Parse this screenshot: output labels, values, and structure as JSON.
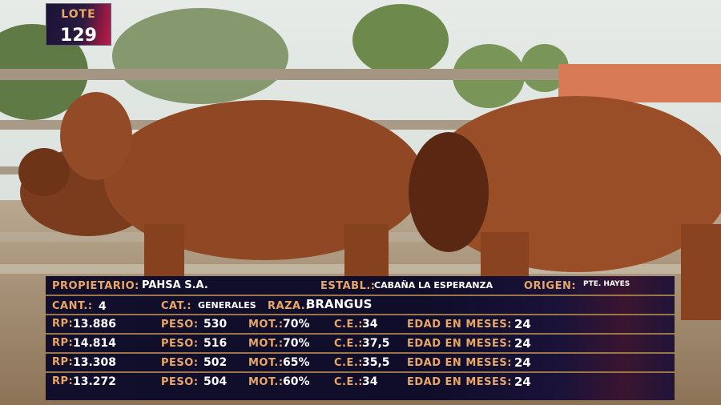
{
  "lot": {
    "label": "LOTE",
    "number": "129"
  },
  "info": {
    "propietario_label": "PROPIETARIO:",
    "propietario": "PAHSA S.A.",
    "establ_label": "ESTABL.:",
    "establ": "CABAÑA LA ESPERANZA",
    "origen_label": "ORIGEN:",
    "origen": "PTE. HAYES",
    "cant_label": "CANT.:",
    "cant": "4",
    "cat_label": "CAT.:",
    "cat": "GENERALES",
    "raza_label": "RAZA.:",
    "raza": "BRANGUS"
  },
  "labels": {
    "rp": "RP:",
    "peso": "PESO:",
    "mot": "MOT.:",
    "ce": "C.E.:",
    "edad": "EDAD EN MESES:"
  },
  "animals": [
    {
      "rp": "13.886",
      "peso": "530",
      "mot": "70%",
      "ce": "34",
      "edad": "24"
    },
    {
      "rp": "14.814",
      "peso": "516",
      "mot": "70%",
      "ce": "37,5",
      "edad": "24"
    },
    {
      "rp": "13.308",
      "peso": "502",
      "mot": "65%",
      "ce": "35,5",
      "edad": "24"
    },
    {
      "rp": "13.272",
      "peso": "504",
      "mot": "60%",
      "ce": "34",
      "edad": "24"
    }
  ],
  "colors": {
    "label": "#e9a765",
    "panel": "#120f2c",
    "accent": "#c21a44"
  }
}
